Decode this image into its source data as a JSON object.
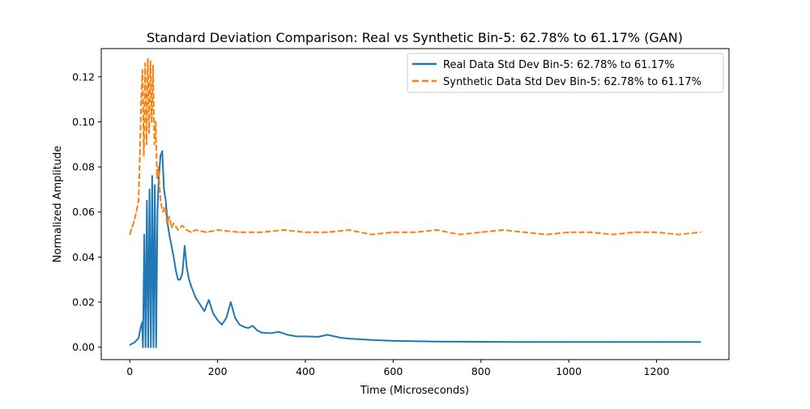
{
  "chart_data": {
    "type": "line",
    "title": "Standard Deviation Comparison: Real vs Synthetic Bin-5: 62.78% to 61.17% (GAN)",
    "xlabel": "Time (Microseconds)",
    "ylabel": "Normalized Amplitude",
    "xlim": [
      -65,
      1365
    ],
    "ylim": [
      -0.0055,
      0.1325
    ],
    "xticks": [
      0,
      200,
      400,
      600,
      800,
      1000,
      1200
    ],
    "yticks": [
      0.0,
      0.02,
      0.04,
      0.06,
      0.08,
      0.1,
      0.12
    ],
    "ytick_labels": [
      "0.00",
      "0.02",
      "0.04",
      "0.06",
      "0.08",
      "0.10",
      "0.12"
    ],
    "grid": false,
    "legend_position": "upper right",
    "colors": {
      "real": "#1f77b4",
      "synthetic": "#ff7f0e"
    },
    "series": [
      {
        "name": "Real Data Std Dev Bin-5: 62.78% to 61.17%",
        "style": "solid",
        "x": [
          0,
          10,
          20,
          25,
          28,
          30,
          33,
          36,
          39,
          42,
          45,
          48,
          51,
          54,
          57,
          60,
          63,
          66,
          70,
          74,
          78,
          82,
          86,
          90,
          95,
          100,
          105,
          110,
          115,
          120,
          125,
          130,
          135,
          140,
          150,
          160,
          170,
          180,
          190,
          200,
          210,
          220,
          230,
          240,
          250,
          260,
          270,
          280,
          290,
          300,
          320,
          340,
          360,
          380,
          400,
          430,
          450,
          480,
          500,
          550,
          600,
          700,
          800,
          900,
          1000,
          1100,
          1200,
          1300
        ],
        "values": [
          0.001,
          0.002,
          0.004,
          0.009,
          0.011,
          0.0,
          0.05,
          0.0,
          0.065,
          0.0,
          0.07,
          0.0,
          0.076,
          0.0,
          0.072,
          0.0,
          0.06,
          0.075,
          0.085,
          0.087,
          0.07,
          0.065,
          0.055,
          0.05,
          0.045,
          0.04,
          0.034,
          0.03,
          0.03,
          0.033,
          0.045,
          0.035,
          0.03,
          0.027,
          0.022,
          0.019,
          0.016,
          0.021,
          0.015,
          0.012,
          0.01,
          0.013,
          0.02,
          0.013,
          0.01,
          0.009,
          0.0085,
          0.0095,
          0.0075,
          0.0065,
          0.0062,
          0.0068,
          0.0055,
          0.0048,
          0.0048,
          0.0046,
          0.0055,
          0.0042,
          0.0038,
          0.0032,
          0.0028,
          0.0025,
          0.0024,
          0.0023,
          0.0023,
          0.0023,
          0.0023,
          0.0023
        ]
      },
      {
        "name": "Synthetic Data Std Dev Bin-5: 62.78% to 61.17%",
        "style": "dashed",
        "x": [
          0,
          5,
          10,
          15,
          20,
          23,
          26,
          29,
          32,
          35,
          38,
          41,
          44,
          47,
          50,
          53,
          56,
          59,
          62,
          65,
          70,
          75,
          80,
          85,
          90,
          95,
          100,
          110,
          120,
          130,
          140,
          150,
          175,
          200,
          250,
          300,
          350,
          400,
          450,
          500,
          550,
          600,
          650,
          700,
          750,
          800,
          850,
          900,
          950,
          1000,
          1050,
          1100,
          1150,
          1200,
          1250,
          1300
        ],
        "values": [
          0.05,
          0.053,
          0.056,
          0.06,
          0.065,
          0.085,
          0.11,
          0.123,
          0.085,
          0.126,
          0.09,
          0.128,
          0.095,
          0.127,
          0.1,
          0.125,
          0.09,
          0.1,
          0.075,
          0.08,
          0.065,
          0.06,
          0.062,
          0.055,
          0.058,
          0.053,
          0.055,
          0.052,
          0.054,
          0.052,
          0.051,
          0.052,
          0.051,
          0.052,
          0.051,
          0.051,
          0.052,
          0.051,
          0.051,
          0.052,
          0.05,
          0.051,
          0.051,
          0.052,
          0.05,
          0.051,
          0.052,
          0.051,
          0.05,
          0.051,
          0.051,
          0.05,
          0.051,
          0.051,
          0.05,
          0.051
        ]
      }
    ]
  }
}
